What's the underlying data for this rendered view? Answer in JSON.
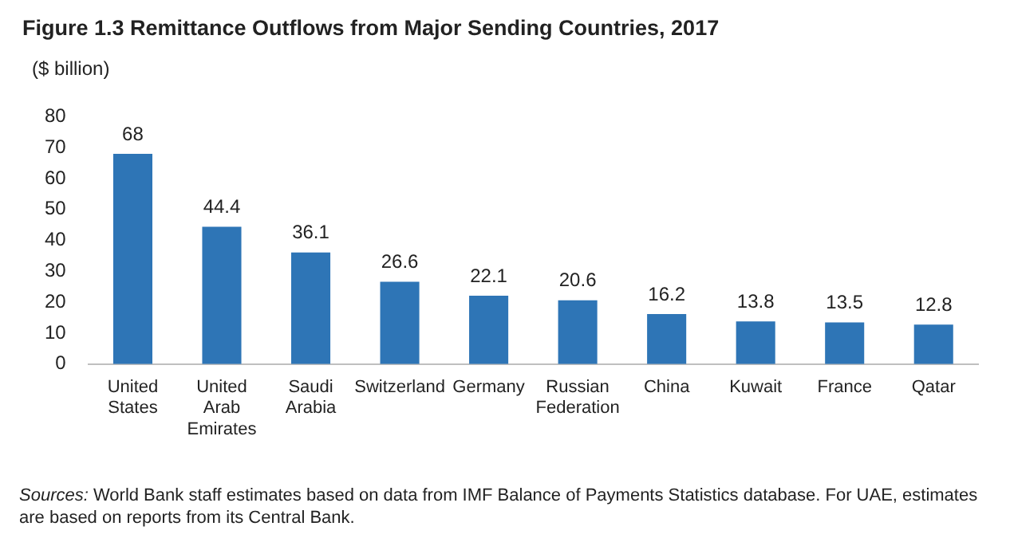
{
  "chart_data": {
    "type": "bar",
    "title": "Figure 1.3 Remittance Outflows from Major Sending Countries, 2017",
    "ylabel": "($ billion)",
    "categories": [
      "United States",
      "United Arab Emirates",
      "Saudi Arabia",
      "Switzerland",
      "Germany",
      "Russian Federation",
      "China",
      "Kuwait",
      "France",
      "Qatar"
    ],
    "values": [
      68,
      44.4,
      36.1,
      26.6,
      22.1,
      20.6,
      16.2,
      13.8,
      13.5,
      12.8
    ],
    "color": "#2e75b6",
    "ylim": [
      0,
      80
    ],
    "yticks": [
      0,
      10,
      20,
      30,
      40,
      50,
      60,
      70,
      80
    ],
    "grid": false,
    "legend": false,
    "data_labels": true,
    "annotations": [
      "Sources: World Bank staff estimates based on data from IMF Balance of Payments Statistics database. For UAE, estimates are based on reports from its Central Bank."
    ]
  }
}
